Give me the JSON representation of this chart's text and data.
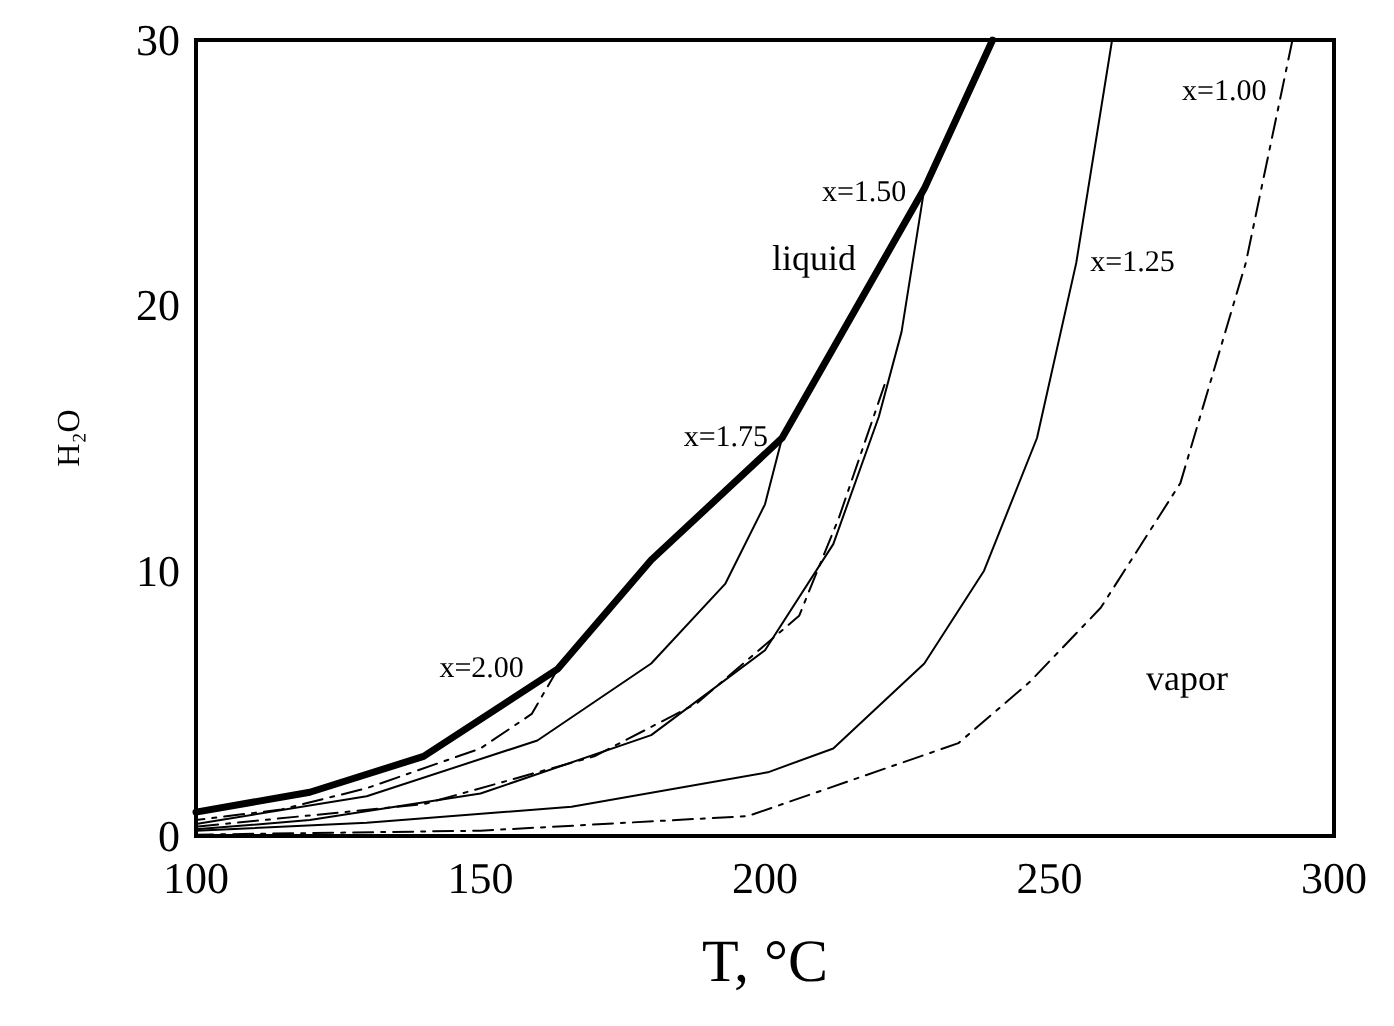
{
  "chart_data": {
    "type": "line",
    "xlabel": "T, °C",
    "ylabel": "H₂O",
    "xlim": [
      100,
      300
    ],
    "xticks": [
      100,
      150,
      200,
      250,
      300
    ],
    "ylim": [
      0,
      30
    ],
    "yticks": [
      0,
      10,
      20,
      30
    ],
    "grid": false,
    "marker": "none",
    "series": [
      {
        "color": "#000000",
        "line_style": "solid",
        "x": [
          100,
          120,
          140,
          163.6,
          180,
          203,
          228,
          240
        ],
        "values": [
          0.9,
          1.65,
          3.0,
          6.3,
          10.4,
          15.0,
          24.4,
          30
        ]
      },
      {
        "name": "x=2.00",
        "color": "#000000",
        "line_style": "dashed",
        "x": [
          163.6,
          159,
          150,
          130,
          115,
          100
        ],
        "values": [
          6.3,
          4.6,
          3.3,
          1.8,
          1.0,
          0.6
        ]
      },
      {
        "name": "x=1.75",
        "color": "#000000",
        "line_style": "solid",
        "x": [
          203,
          200,
          193,
          180,
          160,
          130,
          100
        ],
        "values": [
          15.0,
          12.5,
          9.5,
          6.5,
          3.6,
          1.5,
          0.45
        ]
      },
      {
        "color": "#000000",
        "line_style": "dashed",
        "x": [
          221,
          213,
          206,
          188,
          170,
          140,
          100
        ],
        "values": [
          17.0,
          12.0,
          8.3,
          5.0,
          3.0,
          1.2,
          0.35
        ]
      },
      {
        "name": "x=1.50",
        "color": "#000000",
        "line_style": "solid",
        "x": [
          228,
          224,
          220,
          212,
          200,
          180,
          150,
          120,
          100
        ],
        "values": [
          24.4,
          19.0,
          15.8,
          11.0,
          7.0,
          3.8,
          1.6,
          0.6,
          0.25
        ]
      },
      {
        "name": "x=1.25",
        "color": "#000000",
        "line_style": "solid",
        "x": [
          261,
          254.7,
          247.8,
          238.5,
          228,
          212,
          200.5,
          166,
          130,
          100
        ],
        "values": [
          30,
          21.6,
          15.0,
          10.0,
          6.5,
          3.3,
          2.4,
          1.1,
          0.5,
          0.2
        ]
      },
      {
        "name": "x=1.00",
        "color": "#000000",
        "line_style": "dashed",
        "x": [
          292.7,
          284.5,
          273,
          259,
          246.5,
          234,
          197,
          150,
          100
        ],
        "values": [
          30,
          21.6,
          13.3,
          8.6,
          5.8,
          3.5,
          0.75,
          0.2,
          0.05
        ]
      }
    ],
    "annotations": [
      "liquid",
      "vapor"
    ]
  }
}
